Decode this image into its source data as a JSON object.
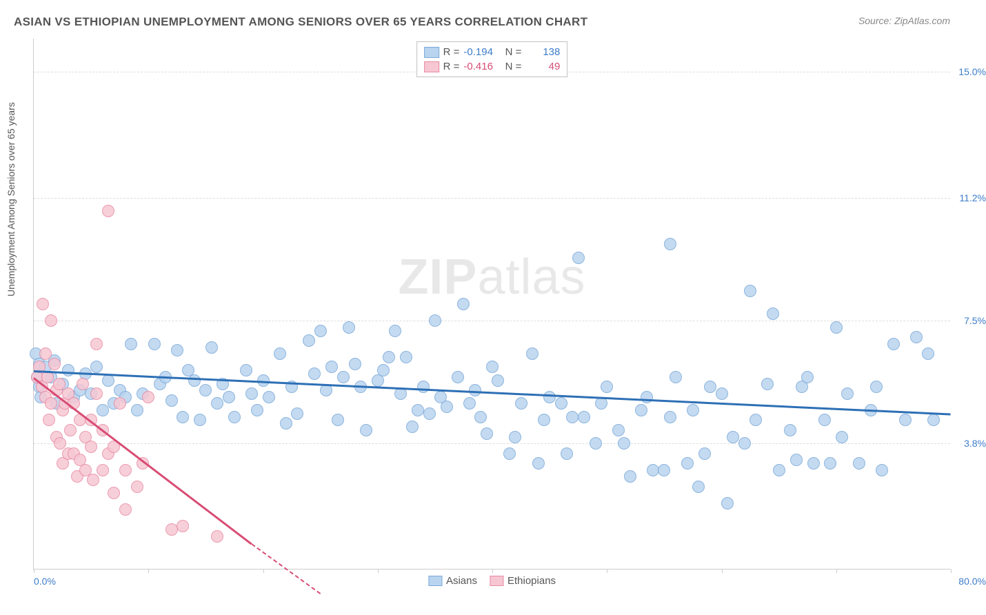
{
  "title": "ASIAN VS ETHIOPIAN UNEMPLOYMENT AMONG SENIORS OVER 65 YEARS CORRELATION CHART",
  "source_prefix": "Source: ",
  "source_name": "ZipAtlas.com",
  "ylabel": "Unemployment Among Seniors over 65 years",
  "watermark_bold": "ZIP",
  "watermark_light": "atlas",
  "chart": {
    "type": "scatter",
    "xlim": [
      0.0,
      80.0
    ],
    "ylim": [
      0.0,
      16.0
    ],
    "xlim_labels": [
      "0.0%",
      "80.0%"
    ],
    "xlim_label_color": "#3d7cc9",
    "xtick_positions": [
      0,
      10,
      20,
      30,
      40,
      50,
      60,
      70,
      80
    ],
    "ytick_values": [
      3.8,
      7.5,
      11.2,
      15.0
    ],
    "ytick_labels": [
      "3.8%",
      "7.5%",
      "11.2%",
      "15.0%"
    ],
    "ytick_color": "#3d7cc9",
    "grid_color": "#dddddd",
    "background_color": "#ffffff",
    "point_radius": 9,
    "series": [
      {
        "name": "Asians",
        "fill": "#b9d4ef",
        "stroke": "#7aa8d8",
        "line_color": "#2d6fb5",
        "text_color": "#3d7cc9",
        "R": "-0.194",
        "N": "138",
        "trend": {
          "x1": 0,
          "y1": 6.0,
          "x2": 80,
          "y2": 4.7
        },
        "points": [
          [
            0.2,
            6.5
          ],
          [
            0.5,
            6.2
          ],
          [
            0.5,
            5.5
          ],
          [
            0.3,
            5.8
          ],
          [
            0.6,
            5.2
          ],
          [
            1.0,
            6.1
          ],
          [
            1.5,
            5.8
          ],
          [
            1.8,
            6.3
          ],
          [
            2.0,
            5.0
          ],
          [
            2.5,
            5.6
          ],
          [
            3.0,
            6.0
          ],
          [
            3.5,
            5.2
          ],
          [
            4.0,
            5.4
          ],
          [
            4.5,
            5.9
          ],
          [
            5.0,
            5.3
          ],
          [
            5.5,
            6.1
          ],
          [
            6.0,
            4.8
          ],
          [
            6.5,
            5.7
          ],
          [
            7.0,
            5.0
          ],
          [
            7.5,
            5.4
          ],
          [
            8.0,
            5.2
          ],
          [
            8.5,
            6.8
          ],
          [
            9.0,
            4.8
          ],
          [
            9.5,
            5.3
          ],
          [
            10.5,
            6.8
          ],
          [
            11.0,
            5.6
          ],
          [
            11.5,
            5.8
          ],
          [
            12.0,
            5.1
          ],
          [
            12.5,
            6.6
          ],
          [
            13.0,
            4.6
          ],
          [
            13.5,
            6.0
          ],
          [
            14.0,
            5.7
          ],
          [
            14.5,
            4.5
          ],
          [
            15.0,
            5.4
          ],
          [
            15.5,
            6.7
          ],
          [
            16.0,
            5.0
          ],
          [
            16.5,
            5.6
          ],
          [
            17.0,
            5.2
          ],
          [
            17.5,
            4.6
          ],
          [
            18.5,
            6.0
          ],
          [
            19.0,
            5.3
          ],
          [
            19.5,
            4.8
          ],
          [
            20.0,
            5.7
          ],
          [
            20.5,
            5.2
          ],
          [
            21.5,
            6.5
          ],
          [
            22.0,
            4.4
          ],
          [
            22.5,
            5.5
          ],
          [
            23.0,
            4.7
          ],
          [
            24.0,
            6.9
          ],
          [
            24.5,
            5.9
          ],
          [
            25.0,
            7.2
          ],
          [
            25.5,
            5.4
          ],
          [
            26.0,
            6.1
          ],
          [
            26.5,
            4.5
          ],
          [
            27.0,
            5.8
          ],
          [
            27.5,
            7.3
          ],
          [
            28.0,
            6.2
          ],
          [
            28.5,
            5.5
          ],
          [
            29.0,
            4.2
          ],
          [
            30.0,
            5.7
          ],
          [
            30.5,
            6.0
          ],
          [
            31.0,
            6.4
          ],
          [
            31.5,
            7.2
          ],
          [
            32.0,
            5.3
          ],
          [
            32.5,
            6.4
          ],
          [
            33.0,
            4.3
          ],
          [
            33.5,
            4.8
          ],
          [
            34.0,
            5.5
          ],
          [
            34.5,
            4.7
          ],
          [
            35.0,
            7.5
          ],
          [
            35.5,
            5.2
          ],
          [
            36.0,
            4.9
          ],
          [
            37.0,
            5.8
          ],
          [
            37.5,
            8.0
          ],
          [
            38.0,
            5.0
          ],
          [
            38.5,
            5.4
          ],
          [
            39.0,
            4.6
          ],
          [
            39.5,
            4.1
          ],
          [
            40.0,
            6.1
          ],
          [
            40.5,
            5.7
          ],
          [
            41.5,
            3.5
          ],
          [
            42.0,
            4.0
          ],
          [
            42.5,
            5.0
          ],
          [
            43.5,
            6.5
          ],
          [
            44.0,
            3.2
          ],
          [
            44.5,
            4.5
          ],
          [
            45.0,
            5.2
          ],
          [
            46.0,
            5.0
          ],
          [
            46.5,
            3.5
          ],
          [
            47.0,
            4.6
          ],
          [
            47.5,
            9.4
          ],
          [
            48.0,
            4.6
          ],
          [
            49.0,
            3.8
          ],
          [
            49.5,
            5.0
          ],
          [
            50.0,
            5.5
          ],
          [
            51.0,
            4.2
          ],
          [
            51.5,
            3.8
          ],
          [
            52.0,
            2.8
          ],
          [
            53.0,
            4.8
          ],
          [
            53.5,
            5.2
          ],
          [
            54.0,
            3.0
          ],
          [
            55.0,
            3.0
          ],
          [
            55.5,
            4.6
          ],
          [
            55.5,
            9.8
          ],
          [
            56.0,
            5.8
          ],
          [
            57.0,
            3.2
          ],
          [
            57.5,
            4.8
          ],
          [
            58.0,
            2.5
          ],
          [
            58.5,
            3.5
          ],
          [
            59.0,
            5.5
          ],
          [
            60.0,
            5.3
          ],
          [
            60.5,
            2.0
          ],
          [
            61.0,
            4.0
          ],
          [
            62.0,
            3.8
          ],
          [
            62.5,
            8.4
          ],
          [
            63.0,
            4.5
          ],
          [
            64.0,
            5.6
          ],
          [
            64.5,
            7.7
          ],
          [
            65.0,
            3.0
          ],
          [
            66.0,
            4.2
          ],
          [
            66.5,
            3.3
          ],
          [
            67.0,
            5.5
          ],
          [
            67.5,
            5.8
          ],
          [
            68.0,
            3.2
          ],
          [
            69.0,
            4.5
          ],
          [
            69.5,
            3.2
          ],
          [
            70.0,
            7.3
          ],
          [
            70.5,
            4.0
          ],
          [
            71.0,
            5.3
          ],
          [
            72.0,
            3.2
          ],
          [
            73.0,
            4.8
          ],
          [
            73.5,
            5.5
          ],
          [
            74.0,
            3.0
          ],
          [
            75.0,
            6.8
          ],
          [
            76.0,
            4.5
          ],
          [
            77.0,
            7.0
          ],
          [
            78.0,
            6.5
          ],
          [
            78.5,
            4.5
          ]
        ]
      },
      {
        "name": "Ethiopians",
        "fill": "#f6c7d3",
        "stroke": "#e88aa3",
        "line_color": "#d84c74",
        "text_color": "#d84c74",
        "R": "-0.416",
        "N": "49",
        "trend": {
          "x1": 0,
          "y1": 5.8,
          "x2": 19,
          "y2": 0.8
        },
        "trend_dash": {
          "x1": 19,
          "y1": 0.8,
          "x2": 25,
          "y2": -0.7
        },
        "points": [
          [
            0.3,
            5.8
          ],
          [
            0.5,
            6.1
          ],
          [
            0.7,
            5.5
          ],
          [
            0.8,
            8.0
          ],
          [
            1.0,
            5.2
          ],
          [
            1.0,
            6.5
          ],
          [
            1.2,
            5.8
          ],
          [
            1.3,
            4.5
          ],
          [
            1.5,
            7.5
          ],
          [
            1.5,
            5.0
          ],
          [
            1.8,
            6.2
          ],
          [
            2.0,
            5.4
          ],
          [
            2.0,
            4.0
          ],
          [
            2.2,
            5.6
          ],
          [
            2.3,
            3.8
          ],
          [
            2.5,
            3.2
          ],
          [
            2.5,
            4.8
          ],
          [
            2.7,
            5.0
          ],
          [
            3.0,
            3.5
          ],
          [
            3.0,
            5.3
          ],
          [
            3.2,
            4.2
          ],
          [
            3.5,
            5.0
          ],
          [
            3.5,
            3.5
          ],
          [
            3.8,
            2.8
          ],
          [
            4.0,
            4.5
          ],
          [
            4.0,
            3.3
          ],
          [
            4.3,
            5.6
          ],
          [
            4.5,
            3.0
          ],
          [
            4.5,
            4.0
          ],
          [
            5.0,
            4.5
          ],
          [
            5.0,
            3.7
          ],
          [
            5.2,
            2.7
          ],
          [
            5.5,
            5.3
          ],
          [
            5.5,
            6.8
          ],
          [
            6.0,
            3.0
          ],
          [
            6.0,
            4.2
          ],
          [
            6.5,
            3.5
          ],
          [
            6.5,
            10.8
          ],
          [
            7.0,
            2.3
          ],
          [
            7.0,
            3.7
          ],
          [
            7.5,
            5.0
          ],
          [
            8.0,
            1.8
          ],
          [
            8.0,
            3.0
          ],
          [
            9.0,
            2.5
          ],
          [
            9.5,
            3.2
          ],
          [
            10.0,
            5.2
          ],
          [
            12.0,
            1.2
          ],
          [
            13.0,
            1.3
          ],
          [
            16.0,
            1.0
          ]
        ]
      }
    ]
  },
  "legend": {
    "items": [
      {
        "label": "Asians",
        "fill": "#b9d4ef",
        "stroke": "#7aa8d8"
      },
      {
        "label": "Ethiopians",
        "fill": "#f6c7d3",
        "stroke": "#e88aa3"
      }
    ]
  }
}
